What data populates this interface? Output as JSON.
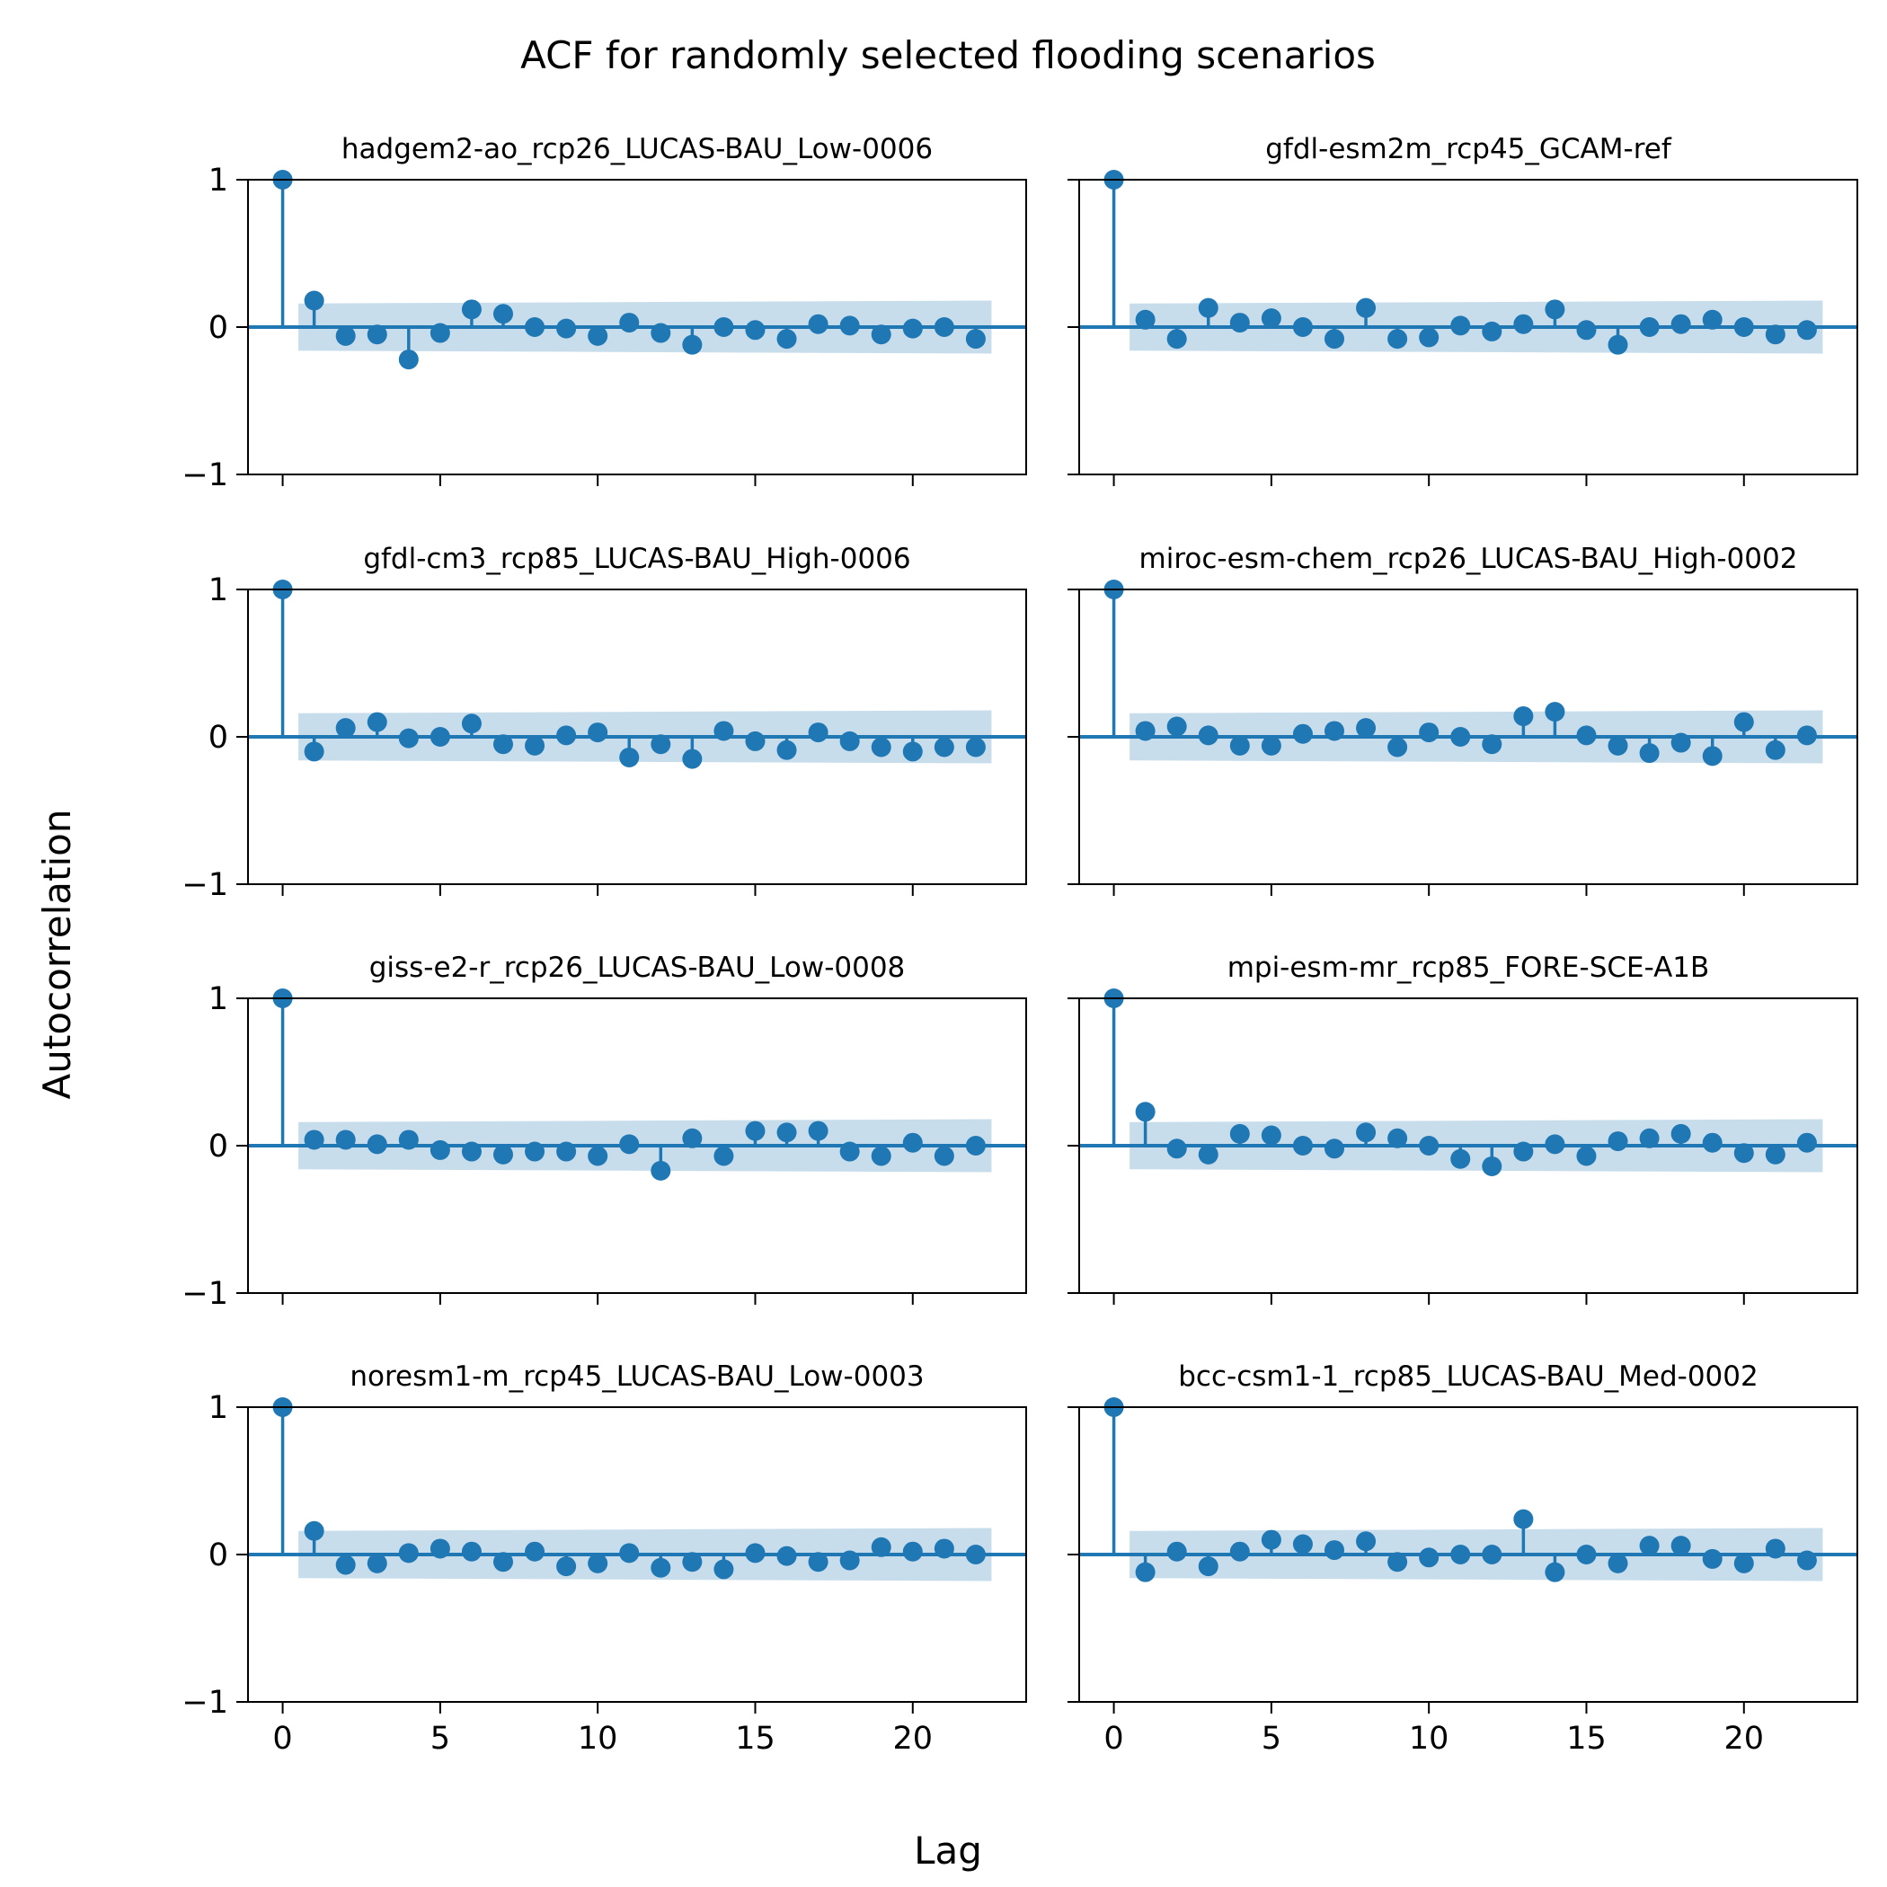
{
  "figure": {
    "title": "ACF for randomly selected flooding scenarios",
    "xlabel": "Lag",
    "ylabel": "Autocorrelation"
  },
  "chart_data": [
    {
      "type": "stem",
      "title": "hadgem2-ao_rcp26_LUCAS-BAU_Low-0006",
      "xlim": [
        -1.1,
        23.6
      ],
      "ylim": [
        -1,
        1
      ],
      "xticks": [
        0,
        5,
        10,
        15,
        20
      ],
      "yticks": [
        -1,
        0,
        1
      ],
      "show_xticklabels": false,
      "lags": [
        0,
        1,
        2,
        3,
        4,
        5,
        6,
        7,
        8,
        9,
        10,
        11,
        12,
        13,
        14,
        15,
        16,
        17,
        18,
        19,
        20,
        21,
        22
      ],
      "values": [
        1.0,
        0.18,
        -0.06,
        -0.05,
        -0.22,
        -0.04,
        0.12,
        0.09,
        0.0,
        -0.01,
        -0.06,
        0.03,
        -0.04,
        -0.12,
        0.0,
        -0.02,
        -0.08,
        0.02,
        0.01,
        -0.05,
        -0.01,
        0.0,
        -0.08
      ],
      "confint": [
        [
          0.5,
          0.16
        ],
        [
          22.5,
          0.18
        ]
      ]
    },
    {
      "type": "stem",
      "title": "gfdl-esm2m_rcp45_GCAM-ref",
      "xlim": [
        -1.1,
        23.6
      ],
      "ylim": [
        -1,
        1
      ],
      "xticks": [
        0,
        5,
        10,
        15,
        20
      ],
      "yticks": [
        -1,
        0,
        1
      ],
      "show_xticklabels": false,
      "lags": [
        0,
        1,
        2,
        3,
        4,
        5,
        6,
        7,
        8,
        9,
        10,
        11,
        12,
        13,
        14,
        15,
        16,
        17,
        18,
        19,
        20,
        21,
        22
      ],
      "values": [
        1.0,
        0.05,
        -0.08,
        0.13,
        0.03,
        0.06,
        0.0,
        -0.08,
        0.13,
        -0.08,
        -0.07,
        0.01,
        -0.03,
        0.02,
        0.12,
        -0.02,
        -0.12,
        0.0,
        0.02,
        0.05,
        0.0,
        -0.05,
        -0.02
      ],
      "confint": [
        [
          0.5,
          0.16
        ],
        [
          22.5,
          0.18
        ]
      ]
    },
    {
      "type": "stem",
      "title": "gfdl-cm3_rcp85_LUCAS-BAU_High-0006",
      "xlim": [
        -1.1,
        23.6
      ],
      "ylim": [
        -1,
        1
      ],
      "xticks": [
        0,
        5,
        10,
        15,
        20
      ],
      "yticks": [
        -1,
        0,
        1
      ],
      "show_xticklabels": false,
      "lags": [
        0,
        1,
        2,
        3,
        4,
        5,
        6,
        7,
        8,
        9,
        10,
        11,
        12,
        13,
        14,
        15,
        16,
        17,
        18,
        19,
        20,
        21,
        22
      ],
      "values": [
        1.0,
        -0.1,
        0.06,
        0.1,
        -0.01,
        0.0,
        0.09,
        -0.05,
        -0.06,
        0.01,
        0.03,
        -0.14,
        -0.05,
        -0.15,
        0.04,
        -0.03,
        -0.09,
        0.03,
        -0.03,
        -0.07,
        -0.1,
        -0.07,
        -0.07
      ],
      "confint": [
        [
          0.5,
          0.16
        ],
        [
          22.5,
          0.18
        ]
      ]
    },
    {
      "type": "stem",
      "title": "miroc-esm-chem_rcp26_LUCAS-BAU_High-0002",
      "xlim": [
        -1.1,
        23.6
      ],
      "ylim": [
        -1,
        1
      ],
      "xticks": [
        0,
        5,
        10,
        15,
        20
      ],
      "yticks": [
        -1,
        0,
        1
      ],
      "show_xticklabels": false,
      "lags": [
        0,
        1,
        2,
        3,
        4,
        5,
        6,
        7,
        8,
        9,
        10,
        11,
        12,
        13,
        14,
        15,
        16,
        17,
        18,
        19,
        20,
        21,
        22
      ],
      "values": [
        1.0,
        0.04,
        0.07,
        0.01,
        -0.06,
        -0.06,
        0.02,
        0.04,
        0.06,
        -0.07,
        0.03,
        0.0,
        -0.05,
        0.14,
        0.17,
        0.01,
        -0.06,
        -0.11,
        -0.04,
        -0.13,
        0.1,
        -0.09,
        0.01
      ],
      "confint": [
        [
          0.5,
          0.16
        ],
        [
          22.5,
          0.18
        ]
      ]
    },
    {
      "type": "stem",
      "title": "giss-e2-r_rcp26_LUCAS-BAU_Low-0008",
      "xlim": [
        -1.1,
        23.6
      ],
      "ylim": [
        -1,
        1
      ],
      "xticks": [
        0,
        5,
        10,
        15,
        20
      ],
      "yticks": [
        -1,
        0,
        1
      ],
      "show_xticklabels": false,
      "lags": [
        0,
        1,
        2,
        3,
        4,
        5,
        6,
        7,
        8,
        9,
        10,
        11,
        12,
        13,
        14,
        15,
        16,
        17,
        18,
        19,
        20,
        21,
        22
      ],
      "values": [
        1.0,
        0.04,
        0.04,
        0.01,
        0.04,
        -0.03,
        -0.04,
        -0.06,
        -0.04,
        -0.04,
        -0.07,
        0.01,
        -0.17,
        0.05,
        -0.07,
        0.1,
        0.09,
        0.1,
        -0.04,
        -0.07,
        0.02,
        -0.07,
        0.0
      ],
      "confint": [
        [
          0.5,
          0.16
        ],
        [
          22.5,
          0.18
        ]
      ]
    },
    {
      "type": "stem",
      "title": "mpi-esm-mr_rcp85_FORE-SCE-A1B",
      "xlim": [
        -1.1,
        23.6
      ],
      "ylim": [
        -1,
        1
      ],
      "xticks": [
        0,
        5,
        10,
        15,
        20
      ],
      "yticks": [
        -1,
        0,
        1
      ],
      "show_xticklabels": false,
      "lags": [
        0,
        1,
        2,
        3,
        4,
        5,
        6,
        7,
        8,
        9,
        10,
        11,
        12,
        13,
        14,
        15,
        16,
        17,
        18,
        19,
        20,
        21,
        22
      ],
      "values": [
        1.0,
        0.23,
        -0.02,
        -0.06,
        0.08,
        0.07,
        0.0,
        -0.02,
        0.09,
        0.05,
        0.0,
        -0.09,
        -0.14,
        -0.04,
        0.01,
        -0.07,
        0.03,
        0.05,
        0.08,
        0.02,
        -0.05,
        -0.06,
        0.02
      ],
      "confint": [
        [
          0.5,
          0.16
        ],
        [
          22.5,
          0.18
        ]
      ]
    },
    {
      "type": "stem",
      "title": "noresm1-m_rcp45_LUCAS-BAU_Low-0003",
      "xlim": [
        -1.1,
        23.6
      ],
      "ylim": [
        -1,
        1
      ],
      "xticks": [
        0,
        5,
        10,
        15,
        20
      ],
      "yticks": [
        -1,
        0,
        1
      ],
      "show_xticklabels": true,
      "lags": [
        0,
        1,
        2,
        3,
        4,
        5,
        6,
        7,
        8,
        9,
        10,
        11,
        12,
        13,
        14,
        15,
        16,
        17,
        18,
        19,
        20,
        21,
        22
      ],
      "values": [
        1.0,
        0.16,
        -0.07,
        -0.06,
        0.01,
        0.04,
        0.02,
        -0.05,
        0.02,
        -0.08,
        -0.06,
        0.01,
        -0.09,
        -0.05,
        -0.1,
        0.01,
        -0.01,
        -0.05,
        -0.04,
        0.05,
        0.02,
        0.04,
        0.0
      ],
      "confint": [
        [
          0.5,
          0.16
        ],
        [
          22.5,
          0.18
        ]
      ]
    },
    {
      "type": "stem",
      "title": "bcc-csm1-1_rcp85_LUCAS-BAU_Med-0002",
      "xlim": [
        -1.1,
        23.6
      ],
      "ylim": [
        -1,
        1
      ],
      "xticks": [
        0,
        5,
        10,
        15,
        20
      ],
      "yticks": [
        -1,
        0,
        1
      ],
      "show_xticklabels": true,
      "lags": [
        0,
        1,
        2,
        3,
        4,
        5,
        6,
        7,
        8,
        9,
        10,
        11,
        12,
        13,
        14,
        15,
        16,
        17,
        18,
        19,
        20,
        21,
        22
      ],
      "values": [
        1.0,
        -0.12,
        0.02,
        -0.08,
        0.02,
        0.1,
        0.07,
        0.03,
        0.09,
        -0.05,
        -0.02,
        0.0,
        0.0,
        0.24,
        -0.12,
        0.0,
        -0.06,
        0.06,
        0.06,
        -0.03,
        -0.06,
        0.04,
        -0.04
      ],
      "confint": [
        [
          0.5,
          0.16
        ],
        [
          22.5,
          0.18
        ]
      ]
    }
  ],
  "colors": {
    "stem": "#1f77b4",
    "confidence_band": "#1f77b4",
    "axes": "#000000"
  }
}
